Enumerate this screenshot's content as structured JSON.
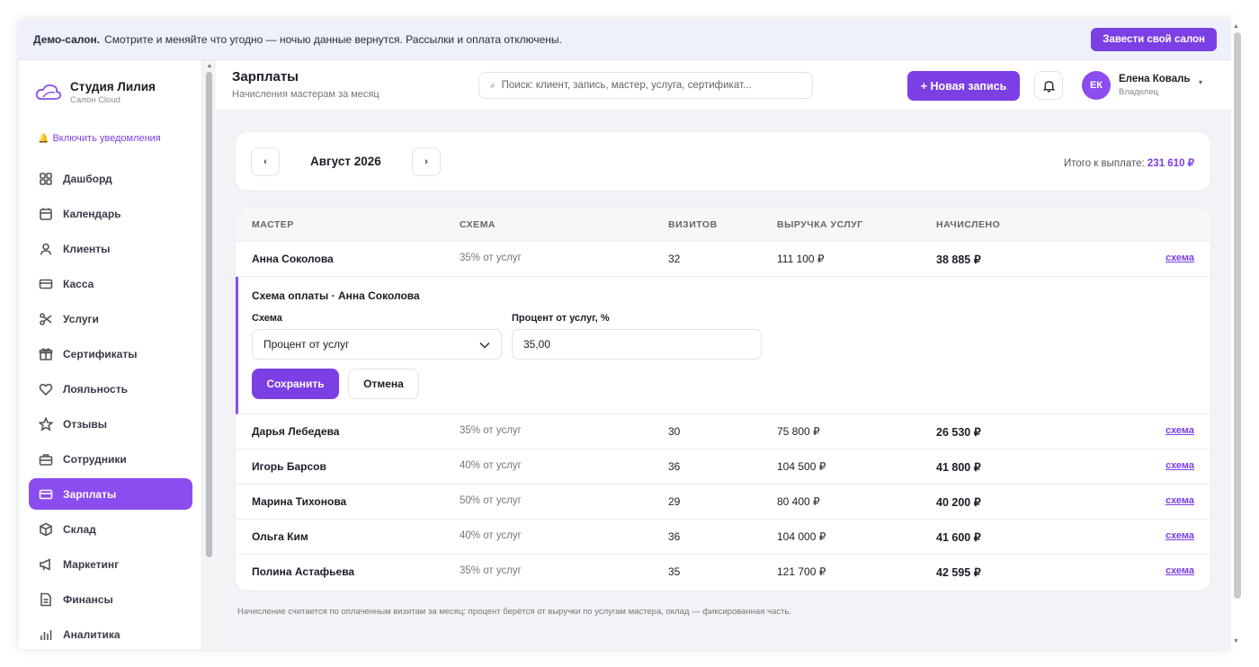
{
  "demo": {
    "bold": "Демо-салон.",
    "text": "Смотрите и меняйте что угодно — ночью данные вернутся. Рассылки и оплата отключены.",
    "button": "Завести свой салон"
  },
  "brand": {
    "name": "Студия Лилия",
    "sub": "Салон Cloud"
  },
  "notifications": {
    "icon": "🔔",
    "label": "Включить уведомления"
  },
  "nav": [
    {
      "label": "Дашборд",
      "icon": "grid"
    },
    {
      "label": "Календарь",
      "icon": "calendar"
    },
    {
      "label": "Клиенты",
      "icon": "user"
    },
    {
      "label": "Касса",
      "icon": "card"
    },
    {
      "label": "Услуги",
      "icon": "scissors"
    },
    {
      "label": "Сертификаты",
      "icon": "gift"
    },
    {
      "label": "Лояльность",
      "icon": "heart"
    },
    {
      "label": "Отзывы",
      "icon": "star"
    },
    {
      "label": "Сотрудники",
      "icon": "briefcase"
    },
    {
      "label": "Зарплаты",
      "icon": "wallet",
      "active": true
    },
    {
      "label": "Склад",
      "icon": "box"
    },
    {
      "label": "Маркетинг",
      "icon": "megaphone"
    },
    {
      "label": "Финансы",
      "icon": "document"
    },
    {
      "label": "Аналитика",
      "icon": "bar-chart"
    }
  ],
  "header": {
    "title": "Зарплаты",
    "subtitle": "Начисления мастерам за месяц",
    "search_placeholder": "Поиск: клиент, запись, мастер, услуга, сертификат...",
    "new_button": "+ Новая запись"
  },
  "user": {
    "initials": "ЕК",
    "name": "Елена Коваль",
    "role": "Владелец"
  },
  "period": {
    "prev": "‹",
    "next": "›",
    "month": "Август 2026",
    "total_label": "Итого к выплате:",
    "total_value": "231 610 ₽"
  },
  "table": {
    "headers": [
      "МАСТЕР",
      "СХЕМА",
      "ВИЗИТОВ",
      "ВЫРУЧКА УСЛУГ",
      "НАЧИСЛЕНО"
    ],
    "link_label": "схема",
    "rows": [
      {
        "name": "Анна Соколова",
        "scheme": "35% от услуг",
        "visits": "32",
        "revenue": "111 100 ₽",
        "accrued": "38 885 ₽"
      },
      {
        "name": "Дарья Лебедева",
        "scheme": "35% от услуг",
        "visits": "30",
        "revenue": "75 800 ₽",
        "accrued": "26 530 ₽"
      },
      {
        "name": "Игорь Барсов",
        "scheme": "40% от услуг",
        "visits": "36",
        "revenue": "104 500 ₽",
        "accrued": "41 800 ₽"
      },
      {
        "name": "Марина Тихонова",
        "scheme": "50% от услуг",
        "visits": "29",
        "revenue": "80 400 ₽",
        "accrued": "40 200 ₽"
      },
      {
        "name": "Ольга Ким",
        "scheme": "40% от услуг",
        "visits": "36",
        "revenue": "104 000 ₽",
        "accrued": "41 600 ₽"
      },
      {
        "name": "Полина Астафьева",
        "scheme": "35% от услуг",
        "visits": "35",
        "revenue": "121 700 ₽",
        "accrued": "42 595 ₽"
      }
    ]
  },
  "editor": {
    "title": "Схема оплаты · Анна Соколова",
    "scheme_label": "Схема",
    "scheme_value": "Процент от услуг",
    "percent_label": "Процент от услуг, %",
    "percent_value": "35,00",
    "save": "Сохранить",
    "cancel": "Отмена"
  },
  "footnote": "Начисление считается по оплаченным визитам за месяц: процент берётся от выручки по услугам мастера, оклад — фиксированная часть."
}
